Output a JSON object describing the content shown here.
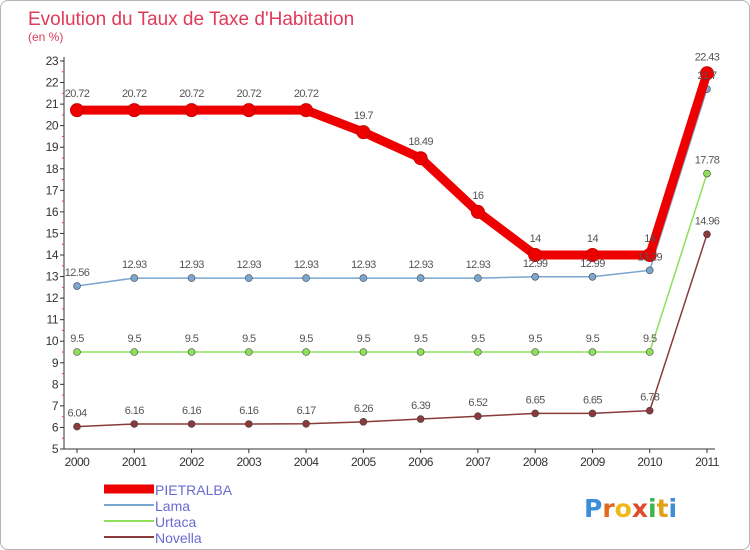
{
  "chart_data": {
    "type": "line",
    "title": "Evolution du Taux de Taxe d'Habitation",
    "subtitle": "(en %)",
    "x": [
      "2000",
      "2001",
      "2002",
      "2003",
      "2004",
      "2005",
      "2006",
      "2007",
      "2008",
      "2009",
      "2010",
      "2011"
    ],
    "ylim": [
      5,
      23
    ],
    "yticks": [
      "5",
      "6",
      "7",
      "8",
      "9",
      "10",
      "11",
      "12",
      "13",
      "14",
      "15",
      "16",
      "17",
      "18",
      "19",
      "20",
      "21",
      "22",
      "23"
    ],
    "grid": false,
    "legend_position": "bottom-left",
    "series": [
      {
        "name": "PIETRALBA",
        "color": "#ee0000",
        "values": [
          20.72,
          20.72,
          20.72,
          20.72,
          20.72,
          19.7,
          18.49,
          16,
          14,
          14,
          14,
          22.43
        ],
        "labels": [
          "20.72",
          "20.72",
          "20.72",
          "20.72",
          "20.72",
          "19.7",
          "18.49",
          "16",
          "14",
          "14",
          "14",
          "22.43"
        ]
      },
      {
        "name": "Lama",
        "color": "#7aa6d0",
        "values": [
          12.56,
          12.93,
          12.93,
          12.93,
          12.93,
          12.93,
          12.93,
          12.93,
          12.99,
          12.99,
          13.29,
          21.7
        ],
        "labels": [
          "12.56",
          "12.93",
          "12.93",
          "12.93",
          "12.93",
          "12.93",
          "12.93",
          "12.93",
          "12.99",
          "12.99",
          "13.29",
          "21.7"
        ]
      },
      {
        "name": "Urtaca",
        "color": "#8ee05a",
        "values": [
          9.5,
          9.5,
          9.5,
          9.5,
          9.5,
          9.5,
          9.5,
          9.5,
          9.5,
          9.5,
          9.5,
          17.78
        ],
        "labels": [
          "9.5",
          "9.5",
          "9.5",
          "9.5",
          "9.5",
          "9.5",
          "9.5",
          "9.5",
          "9.5",
          "9.5",
          "9.5",
          "17.78"
        ]
      },
      {
        "name": "Novella",
        "color": "#8a3a3a",
        "values": [
          6.04,
          6.16,
          6.16,
          6.16,
          6.17,
          6.26,
          6.39,
          6.52,
          6.65,
          6.65,
          6.78,
          14.96
        ],
        "labels": [
          "6.04",
          "6.16",
          "6.16",
          "6.16",
          "6.17",
          "6.26",
          "6.39",
          "6.52",
          "6.65",
          "6.65",
          "6.78",
          "14.96"
        ]
      }
    ]
  },
  "logo": {
    "text": "Proxiti"
  },
  "colors": {
    "title": "#e03a5a",
    "legend_text": "#6a6ad0",
    "axis": "#333333"
  }
}
